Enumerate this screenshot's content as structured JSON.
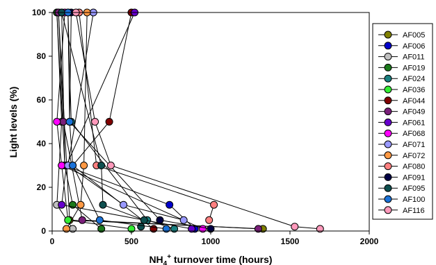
{
  "chart_data": {
    "type": "line",
    "xlabel": {
      "main": "NH",
      "sub": "4",
      "sup": "+",
      "rest": " turnover time (hours)"
    },
    "ylabel": "Light levels (%)",
    "xlim": [
      0,
      2000
    ],
    "ylim": [
      0,
      100
    ],
    "xticks": [
      0,
      500,
      1000,
      1500,
      2000
    ],
    "yticks": [
      0,
      20,
      40,
      60,
      80,
      100
    ],
    "grid": false,
    "legend_position": "right",
    "series": [
      {
        "name": "AF005",
        "color": "#808000",
        "x": [
          40,
          110,
          1330
        ],
        "y": [
          100,
          5,
          1
        ]
      },
      {
        "name": "AF006",
        "color": "#0000cc",
        "x": [
          60,
          80,
          740,
          900
        ],
        "y": [
          100,
          30,
          12,
          1
        ]
      },
      {
        "name": "AF011",
        "color": "#c0c0c0",
        "x": [
          30,
          60,
          30,
          130
        ],
        "y": [
          100,
          50,
          12,
          1
        ]
      },
      {
        "name": "AF019",
        "color": "#1b7a1b",
        "x": [
          30,
          80,
          130,
          310
        ],
        "y": [
          100,
          30,
          12,
          1
        ]
      },
      {
        "name": "AF024",
        "color": "#1a8080",
        "x": [
          100,
          120,
          600,
          770
        ],
        "y": [
          100,
          50,
          5,
          1
        ]
      },
      {
        "name": "AF036",
        "color": "#33ee33",
        "x": [
          60,
          100,
          500
        ],
        "y": [
          30,
          5,
          1
        ]
      },
      {
        "name": "AF044",
        "color": "#800000",
        "x": [
          500,
          360,
          130,
          640
        ],
        "y": [
          100,
          50,
          30,
          1
        ]
      },
      {
        "name": "AF049",
        "color": "#7a1f7a",
        "x": [
          40,
          70,
          190,
          1300
        ],
        "y": [
          100,
          50,
          5,
          1
        ]
      },
      {
        "name": "AF061",
        "color": "#6600cc",
        "x": [
          520,
          90,
          60,
          880
        ],
        "y": [
          100,
          30,
          12,
          1
        ]
      },
      {
        "name": "AF068",
        "color": "#ff00ff",
        "x": [
          80,
          30,
          60,
          950
        ],
        "y": [
          100,
          50,
          30,
          1
        ]
      },
      {
        "name": "AF071",
        "color": "#9999ff",
        "x": [
          260,
          100,
          450,
          830
        ],
        "y": [
          100,
          30,
          12,
          5
        ]
      },
      {
        "name": "AF072",
        "color": "#ff9944",
        "x": [
          220,
          200,
          180,
          90
        ],
        "y": [
          100,
          30,
          12,
          1
        ]
      },
      {
        "name": "AF080",
        "color": "#ff8080",
        "x": [
          170,
          280,
          1020,
          990
        ],
        "y": [
          100,
          30,
          12,
          5
        ]
      },
      {
        "name": "AF091",
        "color": "#000044",
        "x": [
          120,
          110,
          680,
          1000
        ],
        "y": [
          100,
          50,
          5,
          1
        ]
      },
      {
        "name": "AF095",
        "color": "#0e4f4f",
        "x": [
          60,
          310,
          320,
          580,
          560
        ],
        "y": [
          100,
          30,
          12,
          5,
          2
        ]
      },
      {
        "name": "AF100",
        "color": "#1a72d8",
        "x": [
          100,
          110,
          130,
          300,
          720
        ],
        "y": [
          100,
          50,
          30,
          5,
          1
        ]
      },
      {
        "name": "AF116",
        "color": "#ff99bb",
        "x": [
          150,
          270,
          370,
          1530,
          1690
        ],
        "y": [
          100,
          50,
          30,
          2,
          1
        ]
      }
    ]
  }
}
